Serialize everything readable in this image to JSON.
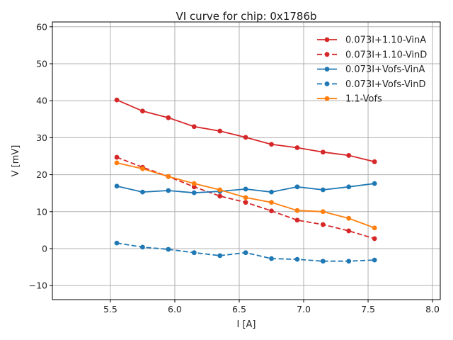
{
  "chart_data": {
    "type": "line",
    "title": "VI curve for chip: 0x1786b",
    "xlabel": "I [A]",
    "ylabel": "V [mV]",
    "xlim": [
      5.05,
      8.06
    ],
    "ylim": [
      -13.8,
      61.3
    ],
    "grid": true,
    "legend_position": "top-right",
    "xticks": [
      5.5,
      6.0,
      6.5,
      7.0,
      7.5,
      8.0
    ],
    "xtick_labels": [
      "5.5",
      "6.0",
      "6.5",
      "7.0",
      "7.5",
      "8.0"
    ],
    "yticks": [
      -10,
      0,
      10,
      20,
      30,
      40,
      50,
      60
    ],
    "ytick_labels": [
      "−10",
      "0",
      "10",
      "20",
      "30",
      "40",
      "50",
      "60"
    ],
    "x": [
      5.55,
      5.75,
      5.95,
      6.15,
      6.35,
      6.55,
      6.75,
      6.95,
      7.15,
      7.35,
      7.55
    ],
    "series": [
      {
        "name": "0.073I+1.10-VinA",
        "color": "#d62728",
        "style": "solid",
        "values": [
          40.2,
          37.2,
          35.4,
          33.0,
          31.8,
          30.1,
          28.2,
          27.3,
          26.1,
          25.2,
          23.5
        ]
      },
      {
        "name": "0.073I+1.10-VinD",
        "color": "#d62728",
        "style": "dashed",
        "values": [
          24.7,
          22.0,
          19.5,
          16.7,
          14.2,
          12.5,
          10.2,
          7.7,
          6.5,
          4.8,
          2.7
        ]
      },
      {
        "name": "0.073I+Vofs-VinA",
        "color": "#1f77b4",
        "style": "solid",
        "values": [
          16.9,
          15.3,
          15.7,
          15.1,
          15.5,
          16.1,
          15.3,
          16.7,
          15.9,
          16.7,
          17.6
        ]
      },
      {
        "name": "0.073I+Vofs-VinD",
        "color": "#1f77b4",
        "style": "dashed",
        "values": [
          1.5,
          0.4,
          -0.2,
          -1.1,
          -1.9,
          -1.1,
          -2.7,
          -2.9,
          -3.4,
          -3.4,
          -3.1
        ]
      },
      {
        "name": "1.1-Vofs",
        "color": "#ff7f0e",
        "style": "solid",
        "values": [
          23.2,
          21.6,
          19.5,
          17.6,
          15.9,
          13.8,
          12.5,
          10.3,
          10.0,
          8.2,
          5.6
        ]
      }
    ]
  }
}
